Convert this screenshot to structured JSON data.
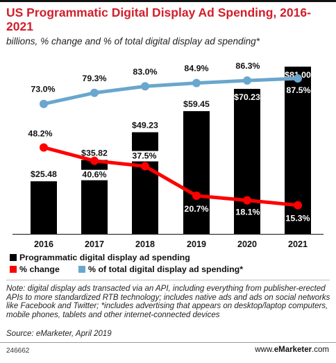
{
  "title": "US Programmatic Digital Display Ad Spending, 2016-2021",
  "subtitle": "billions, % change and % of total digital display ad spending*",
  "chart_data": {
    "type": "bar",
    "categories": [
      "2016",
      "2017",
      "2018",
      "2019",
      "2020",
      "2021"
    ],
    "series": [
      {
        "name": "Programmatic digital display ad spending",
        "kind": "bar",
        "values": [
          25.48,
          35.82,
          49.23,
          59.45,
          70.23,
          81.0
        ],
        "labels": [
          "$25.48",
          "$35.82",
          "$49.23",
          "$59.45",
          "$70.23",
          "$81.00"
        ],
        "color": "#000000"
      },
      {
        "name": "% change",
        "kind": "line",
        "values": [
          48.2,
          40.6,
          37.5,
          20.7,
          18.1,
          15.3
        ],
        "labels": [
          "48.2%",
          "40.6%",
          "37.5%",
          "20.7%",
          "18.1%",
          "15.3%"
        ],
        "color": "#ff0000"
      },
      {
        "name": "% of total digital display ad spending*",
        "kind": "line",
        "values": [
          73.0,
          79.3,
          83.0,
          84.9,
          86.3,
          87.5
        ],
        "labels": [
          "73.0%",
          "79.3%",
          "83.0%",
          "84.9%",
          "86.3%",
          "87.5%"
        ],
        "color": "#6aa6cd"
      }
    ],
    "legend_position": "bottom",
    "grid": false
  },
  "legend": {
    "bars": "Programmatic digital display ad spending",
    "change": "% change",
    "share": "% of total digital display ad spending*"
  },
  "note": "Note: digital display ads transacted via an API, including everything from publisher-erected APIs to more standardized RTB technology; includes native ads and ads on social networks like Facebook and Twitter; *includes advertising that appears on desktop/laptop computers, mobile phones, tablets and other internet-connected devices",
  "source": "Source: eMarketer, April 2019",
  "chart_id": "246662",
  "brand": {
    "prefix": "www.",
    "name": "eMarketer",
    "suffix": ".com"
  }
}
